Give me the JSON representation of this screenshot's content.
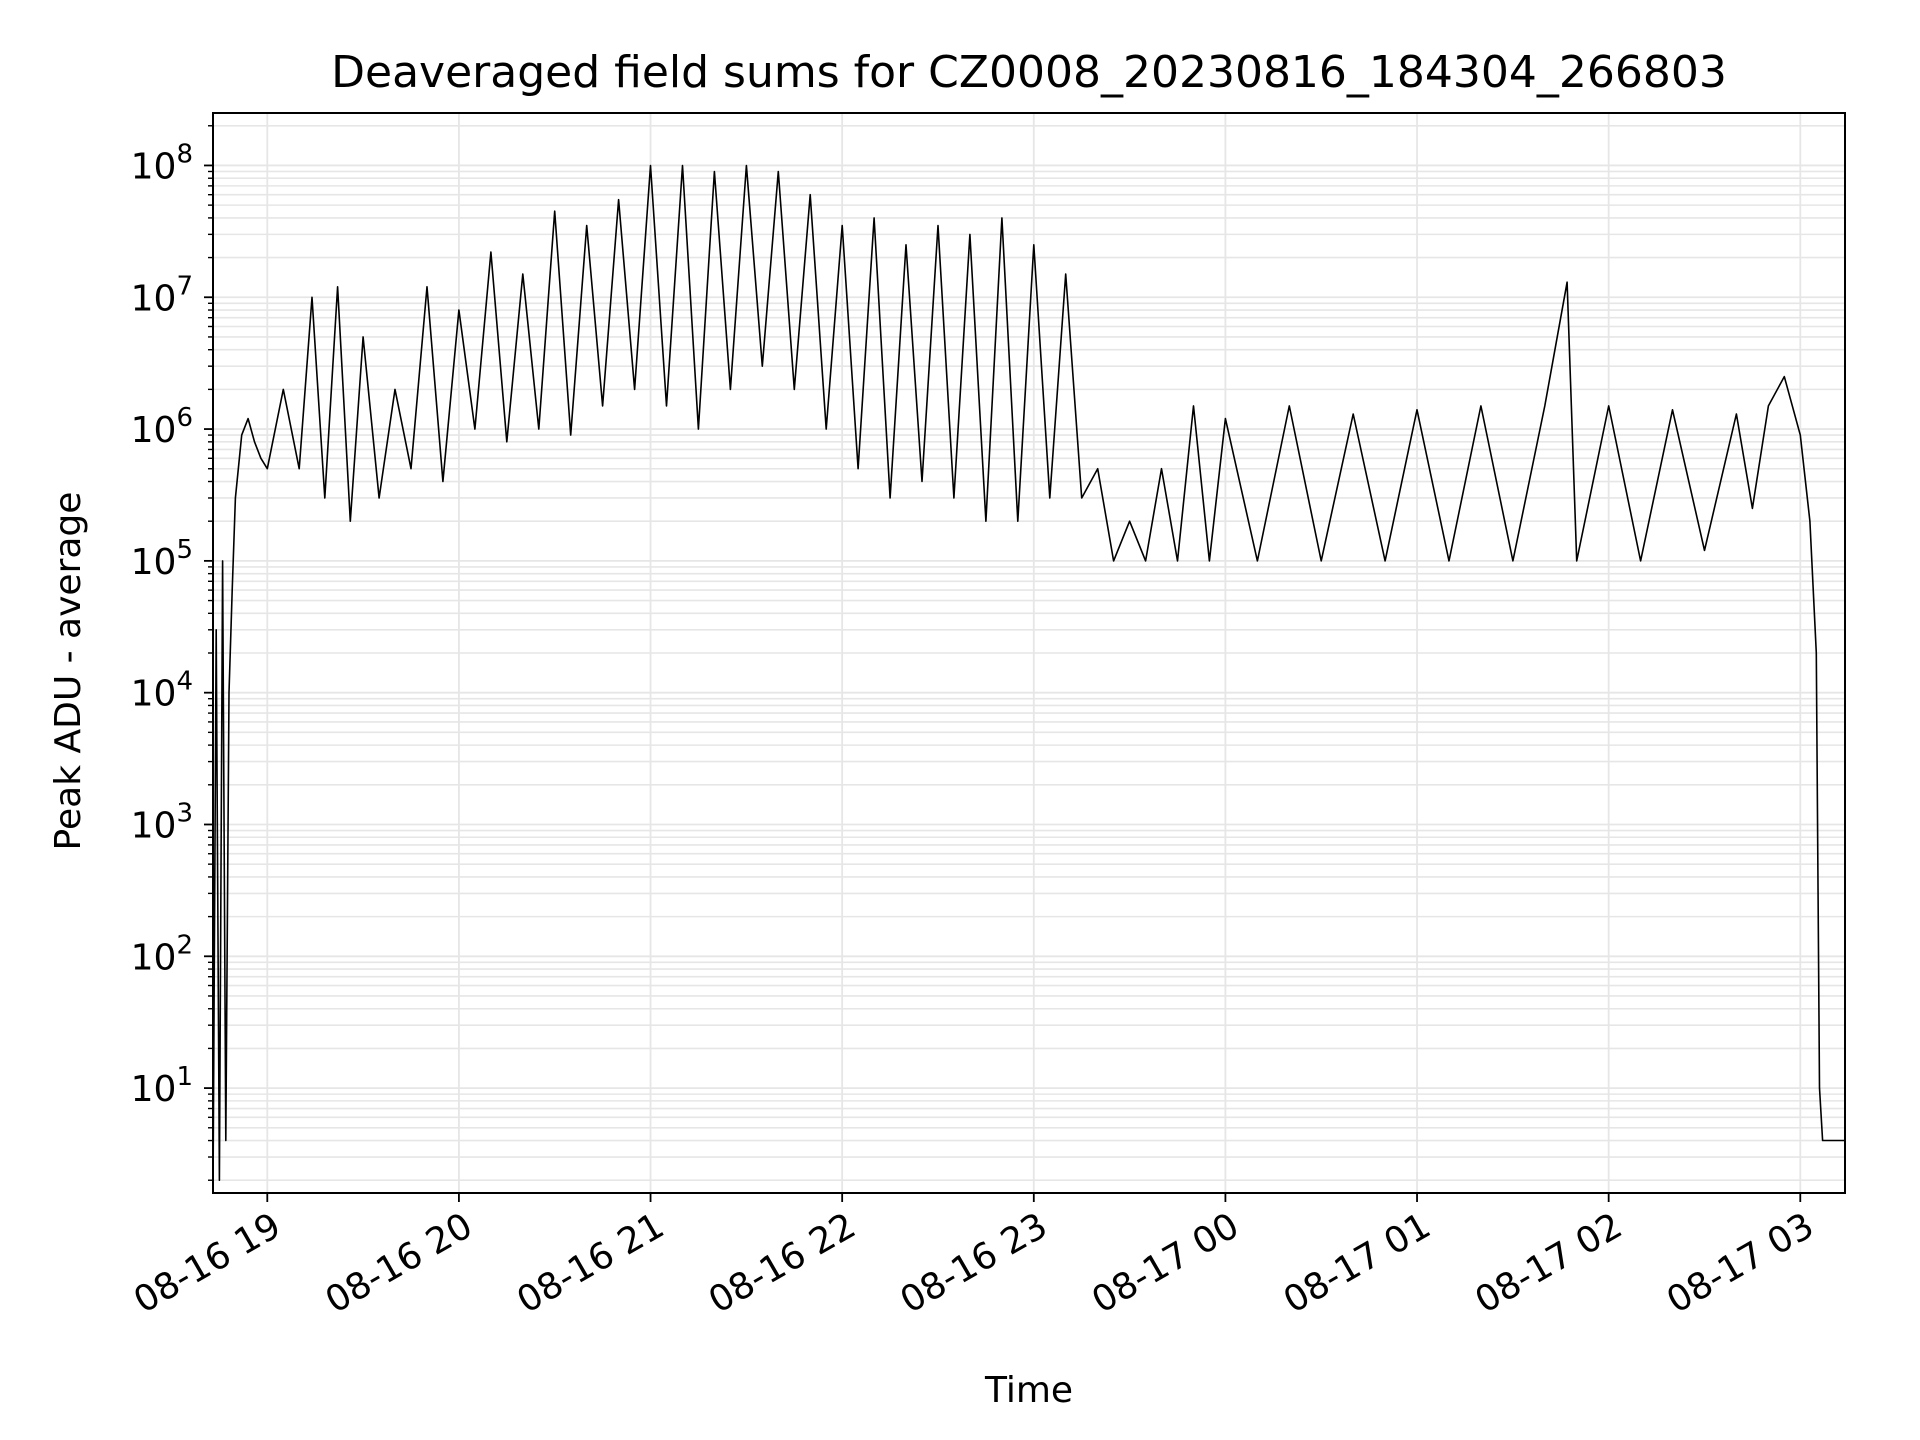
{
  "chart_data": {
    "type": "line",
    "title": "Deaveraged field sums for CZ0008_20230816_184304_266803",
    "xlabel": "Time",
    "ylabel": "Peak ADU - average",
    "yscale": "log",
    "ylim": [
      1.6,
      250000000
    ],
    "xlim": [
      "2023-08-16 18:43",
      "2023-08-17 03:14"
    ],
    "grid": true,
    "line_color": "#000000",
    "grid_color": "#e6e6e6",
    "x_ticks": [
      "2023-08-16 19:00",
      "2023-08-16 20:00",
      "2023-08-16 21:00",
      "2023-08-16 22:00",
      "2023-08-16 23:00",
      "2023-08-17 00:00",
      "2023-08-17 01:00",
      "2023-08-17 02:00",
      "2023-08-17 03:00"
    ],
    "x_tick_labels": [
      "08-16 19",
      "08-16 20",
      "08-16 21",
      "08-16 22",
      "08-16 23",
      "08-17 00",
      "08-17 01",
      "08-17 02",
      "08-17 03"
    ],
    "y_ticks": [
      {
        "base": "10",
        "exp": "1",
        "value": 10
      },
      {
        "base": "10",
        "exp": "2",
        "value": 100
      },
      {
        "base": "10",
        "exp": "3",
        "value": 1000
      },
      {
        "base": "10",
        "exp": "4",
        "value": 10000
      },
      {
        "base": "10",
        "exp": "5",
        "value": 100000
      },
      {
        "base": "10",
        "exp": "6",
        "value": 1000000
      },
      {
        "base": "10",
        "exp": "7",
        "value": 10000000
      },
      {
        "base": "10",
        "exp": "8",
        "value": 100000000
      }
    ],
    "series": [
      {
        "x": [
          "2023-08-16 18:43",
          "2023-08-16 18:44",
          "2023-08-16 18:45",
          "2023-08-16 18:46",
          "2023-08-16 18:47",
          "2023-08-16 18:48",
          "2023-08-16 18:49",
          "2023-08-16 18:50",
          "2023-08-16 18:52",
          "2023-08-16 18:54",
          "2023-08-16 18:56",
          "2023-08-16 18:58",
          "2023-08-16 19:00",
          "2023-08-16 19:05",
          "2023-08-16 19:10",
          "2023-08-16 19:14",
          "2023-08-16 19:18",
          "2023-08-16 19:22",
          "2023-08-16 19:26",
          "2023-08-16 19:30",
          "2023-08-16 19:35",
          "2023-08-16 19:40",
          "2023-08-16 19:45",
          "2023-08-16 19:50",
          "2023-08-16 19:55",
          "2023-08-16 20:00",
          "2023-08-16 20:05",
          "2023-08-16 20:10",
          "2023-08-16 20:15",
          "2023-08-16 20:20",
          "2023-08-16 20:25",
          "2023-08-16 20:30",
          "2023-08-16 20:35",
          "2023-08-16 20:40",
          "2023-08-16 20:45",
          "2023-08-16 20:50",
          "2023-08-16 20:55",
          "2023-08-16 21:00",
          "2023-08-16 21:05",
          "2023-08-16 21:10",
          "2023-08-16 21:15",
          "2023-08-16 21:20",
          "2023-08-16 21:25",
          "2023-08-16 21:30",
          "2023-08-16 21:35",
          "2023-08-16 21:40",
          "2023-08-16 21:45",
          "2023-08-16 21:50",
          "2023-08-16 21:55",
          "2023-08-16 22:00",
          "2023-08-16 22:05",
          "2023-08-16 22:10",
          "2023-08-16 22:15",
          "2023-08-16 22:20",
          "2023-08-16 22:25",
          "2023-08-16 22:30",
          "2023-08-16 22:35",
          "2023-08-16 22:40",
          "2023-08-16 22:45",
          "2023-08-16 22:50",
          "2023-08-16 22:55",
          "2023-08-16 23:00",
          "2023-08-16 23:05",
          "2023-08-16 23:10",
          "2023-08-16 23:15",
          "2023-08-16 23:20",
          "2023-08-16 23:25",
          "2023-08-16 23:30",
          "2023-08-16 23:35",
          "2023-08-16 23:40",
          "2023-08-16 23:45",
          "2023-08-16 23:50",
          "2023-08-16 23:55",
          "2023-08-17 00:00",
          "2023-08-17 00:10",
          "2023-08-17 00:20",
          "2023-08-17 00:30",
          "2023-08-17 00:40",
          "2023-08-17 00:50",
          "2023-08-17 01:00",
          "2023-08-17 01:10",
          "2023-08-17 01:20",
          "2023-08-17 01:30",
          "2023-08-17 01:40",
          "2023-08-17 01:47",
          "2023-08-17 01:50",
          "2023-08-17 02:00",
          "2023-08-17 02:10",
          "2023-08-17 02:20",
          "2023-08-17 02:30",
          "2023-08-17 02:40",
          "2023-08-17 02:45",
          "2023-08-17 02:50",
          "2023-08-17 02:55",
          "2023-08-17 03:00",
          "2023-08-17 03:03",
          "2023-08-17 03:05",
          "2023-08-17 03:06",
          "2023-08-17 03:07",
          "2023-08-17 03:10",
          "2023-08-17 03:14"
        ],
        "values": [
          1.6,
          30000,
          2,
          100000,
          4,
          10000,
          60000,
          300000,
          900000,
          1200000,
          800000,
          600000,
          500000,
          2000000,
          500000,
          10000000,
          300000,
          12000000,
          200000,
          5000000,
          300000,
          2000000,
          500000,
          12000000,
          400000,
          8000000,
          1000000,
          22000000,
          800000,
          15000000,
          1000000,
          45000000,
          900000,
          35000000,
          1500000,
          55000000,
          2000000,
          100000000,
          1500000,
          100000000,
          1000000,
          90000000,
          2000000,
          100000000,
          3000000,
          90000000,
          2000000,
          60000000,
          1000000,
          35000000,
          500000,
          40000000,
          300000,
          25000000,
          400000,
          35000000,
          300000,
          30000000,
          200000,
          40000000,
          200000,
          25000000,
          300000,
          15000000,
          300000,
          500000,
          100000,
          200000,
          100000,
          500000,
          100000,
          1500000,
          100000,
          1200000,
          100000,
          1500000,
          100000,
          1300000,
          100000,
          1400000,
          100000,
          1500000,
          100000,
          1500000,
          13000000,
          100000,
          1500000,
          100000,
          1400000,
          120000,
          1300000,
          250000,
          1500000,
          2500000,
          900000,
          200000,
          20000,
          10,
          4,
          4,
          4
        ]
      }
    ]
  }
}
